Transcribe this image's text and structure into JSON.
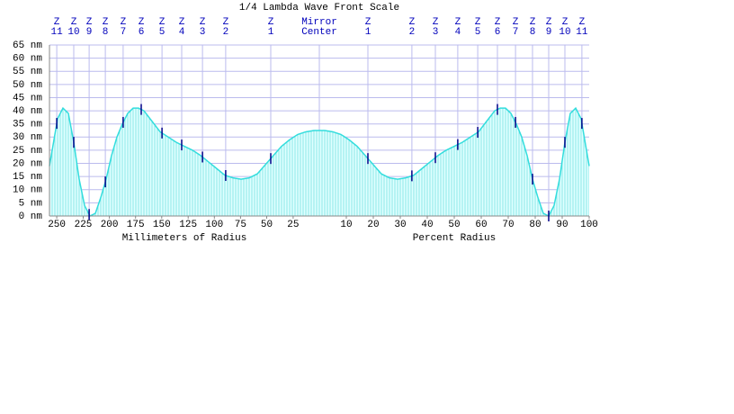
{
  "chart_data": {
    "type": "area",
    "title": "1/4 Lambda Wave Front Scale",
    "x_label_left": "Millimeters of Radius",
    "x_label_right": "Percent Radius",
    "x": [
      -100,
      -97,
      -95,
      -93,
      -91,
      -89,
      -87,
      -85,
      -83,
      -81,
      -79,
      -77,
      -75,
      -73,
      -71,
      -69,
      -67,
      -65,
      -62,
      -59,
      -56,
      -53,
      -50,
      -47,
      -44,
      -41,
      -38,
      -35,
      -32,
      -29,
      -26,
      -23,
      -20,
      -17,
      -14,
      -11,
      -8,
      -5,
      -2,
      0,
      2,
      5,
      8,
      11,
      14,
      17,
      20,
      23,
      26,
      29,
      32,
      35,
      38,
      41,
      44,
      47,
      50,
      53,
      56,
      59,
      62,
      65,
      67,
      69,
      71,
      73,
      75,
      77,
      79,
      81,
      83,
      85,
      87,
      89,
      91,
      93,
      95,
      97,
      100
    ],
    "values": [
      19,
      37,
      41,
      39,
      28,
      14,
      4,
      0,
      1,
      7,
      14,
      23,
      30,
      35,
      39,
      41,
      41,
      40,
      36,
      32,
      30,
      28,
      26.5,
      25,
      23,
      20.5,
      18,
      15.5,
      14.5,
      14,
      14.5,
      16,
      19.5,
      23,
      26.5,
      29,
      31,
      32,
      32.5,
      32.5,
      32.5,
      32,
      31,
      29,
      26.5,
      23,
      19.5,
      16,
      14.5,
      14,
      14.5,
      15.5,
      18,
      20.5,
      23,
      25,
      26.5,
      28,
      30,
      32,
      36,
      40,
      41,
      41,
      39,
      35,
      30,
      23,
      14,
      7,
      1,
      0,
      4,
      14,
      28,
      39,
      41,
      37,
      19
    ],
    "color": "#33dddd",
    "xlim": [
      -100,
      100
    ],
    "ylim": [
      0,
      65
    ],
    "yticks": [
      {
        "value": 0,
        "label": "0 nm"
      },
      {
        "value": 5,
        "label": "5 nm"
      },
      {
        "value": 10,
        "label": "10 nm"
      },
      {
        "value": 15,
        "label": "15 nm"
      },
      {
        "value": 20,
        "label": "20 nm"
      },
      {
        "value": 25,
        "label": "25 nm"
      },
      {
        "value": 30,
        "label": "30 nm"
      },
      {
        "value": 35,
        "label": "35 nm"
      },
      {
        "value": 40,
        "label": "40 nm"
      },
      {
        "value": 45,
        "label": "45 nm"
      },
      {
        "value": 50,
        "label": "50 nm"
      },
      {
        "value": 55,
        "label": "55 nm"
      },
      {
        "value": 60,
        "label": "60 nm"
      },
      {
        "value": 65,
        "label": "65 nm"
      }
    ],
    "xticks": [
      {
        "value": -97.3,
        "label": "250"
      },
      {
        "value": -87.5,
        "label": "225"
      },
      {
        "value": -77.8,
        "label": "200"
      },
      {
        "value": -68.1,
        "label": "175"
      },
      {
        "value": -58.4,
        "label": "150"
      },
      {
        "value": -48.6,
        "label": "125"
      },
      {
        "value": -38.9,
        "label": "100"
      },
      {
        "value": -29.2,
        "label": "75"
      },
      {
        "value": -19.5,
        "label": "50"
      },
      {
        "value": -9.7,
        "label": "25"
      },
      10,
      20,
      30,
      40,
      50,
      60,
      70,
      80,
      90,
      100
    ],
    "grid": true,
    "zones": [
      {
        "label": "Z",
        "number": "11",
        "x": -97.3
      },
      {
        "label": "Z",
        "number": "10",
        "x": -91
      },
      {
        "label": "Z",
        "number": "9",
        "x": -85.3
      },
      {
        "label": "Z",
        "number": "8",
        "x": -79.3
      },
      {
        "label": "Z",
        "number": "7",
        "x": -72.7
      },
      {
        "label": "Z",
        "number": "6",
        "x": -66
      },
      {
        "label": "Z",
        "number": "5",
        "x": -58.3
      },
      {
        "label": "Z",
        "number": "4",
        "x": -51
      },
      {
        "label": "Z",
        "number": "3",
        "x": -43.3
      },
      {
        "label": "Z",
        "number": "2",
        "x": -34.7
      },
      {
        "label": "Z",
        "number": "1",
        "x": -18
      },
      {
        "label": "Mirror",
        "number": "Center",
        "x": 0
      },
      {
        "label": "Z",
        "number": "1",
        "x": 18
      },
      {
        "label": "Z",
        "number": "2",
        "x": 34.3
      },
      {
        "label": "Z",
        "number": "3",
        "x": 43
      },
      {
        "label": "Z",
        "number": "4",
        "x": 51.3
      },
      {
        "label": "Z",
        "number": "5",
        "x": 58.7
      },
      {
        "label": "Z",
        "number": "6",
        "x": 66
      },
      {
        "label": "Z",
        "number": "7",
        "x": 72.7
      },
      {
        "label": "Z",
        "number": "8",
        "x": 79
      },
      {
        "label": "Z",
        "number": "9",
        "x": 85
      },
      {
        "label": "Z",
        "number": "10",
        "x": 91
      },
      {
        "label": "Z",
        "number": "11",
        "x": 97.3
      }
    ]
  }
}
